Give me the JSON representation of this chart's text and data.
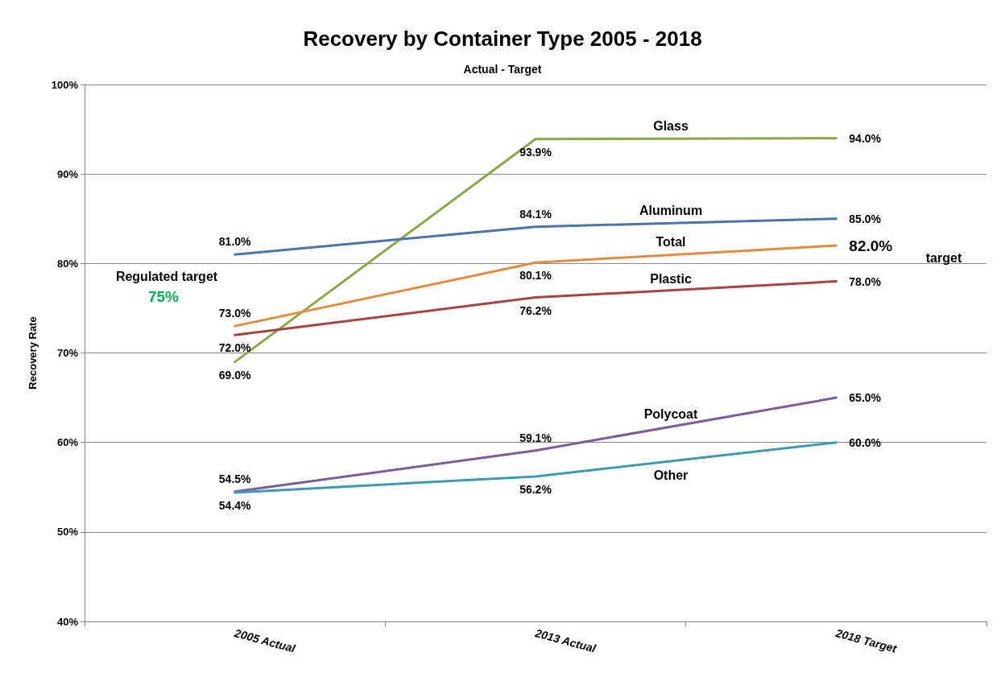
{
  "chart_data": {
    "type": "line",
    "title": "Recovery by Container Type 2005 - 2018",
    "subtitle": "Actual - Target",
    "ylabel": "Recovery Rate",
    "categories": [
      "2005 Actual",
      "2013 Actual",
      "2018 Target"
    ],
    "series": [
      {
        "name": "Glass",
        "color": "#8aa84a",
        "values": [
          69.0,
          93.9,
          94.0
        ],
        "value_labels": [
          "69.0%",
          "93.9%",
          "94.0%"
        ]
      },
      {
        "name": "Aluminum",
        "color": "#4a74aa",
        "values": [
          81.0,
          84.1,
          85.0
        ],
        "value_labels": [
          "81.0%",
          "84.1%",
          "85.0%"
        ]
      },
      {
        "name": "Total",
        "color": "#e38c3e",
        "values": [
          73.0,
          80.1,
          82.0
        ],
        "value_labels": [
          "73.0%",
          "80.1%",
          "82.0%"
        ]
      },
      {
        "name": "Plastic",
        "color": "#a8433f",
        "values": [
          72.0,
          76.2,
          78.0
        ],
        "value_labels": [
          "72.0%",
          "76.2%",
          "78.0%"
        ]
      },
      {
        "name": "Polycoat",
        "color": "#7b5c9c",
        "values": [
          54.5,
          59.1,
          65.0
        ],
        "value_labels": [
          "54.5%",
          "59.1%",
          "65.0%"
        ]
      },
      {
        "name": "Other",
        "color": "#3c9bb2",
        "values": [
          54.4,
          56.2,
          60.0
        ],
        "value_labels": [
          "54.4%",
          "56.2%",
          "60.0%"
        ]
      }
    ],
    "ylim": [
      40,
      100
    ],
    "yticks": [
      {
        "value": 40,
        "label": "40%"
      },
      {
        "value": 50,
        "label": "50%"
      },
      {
        "value": 60,
        "label": "60%"
      },
      {
        "value": 70,
        "label": "70%"
      },
      {
        "value": 80,
        "label": "80%"
      },
      {
        "value": 90,
        "label": "90%"
      },
      {
        "value": 100,
        "label": "100%"
      }
    ],
    "grid": "y",
    "legend": false,
    "marker": "none",
    "line_style": "solid",
    "annotations": [
      "Regulated target",
      "75%",
      "target"
    ]
  }
}
